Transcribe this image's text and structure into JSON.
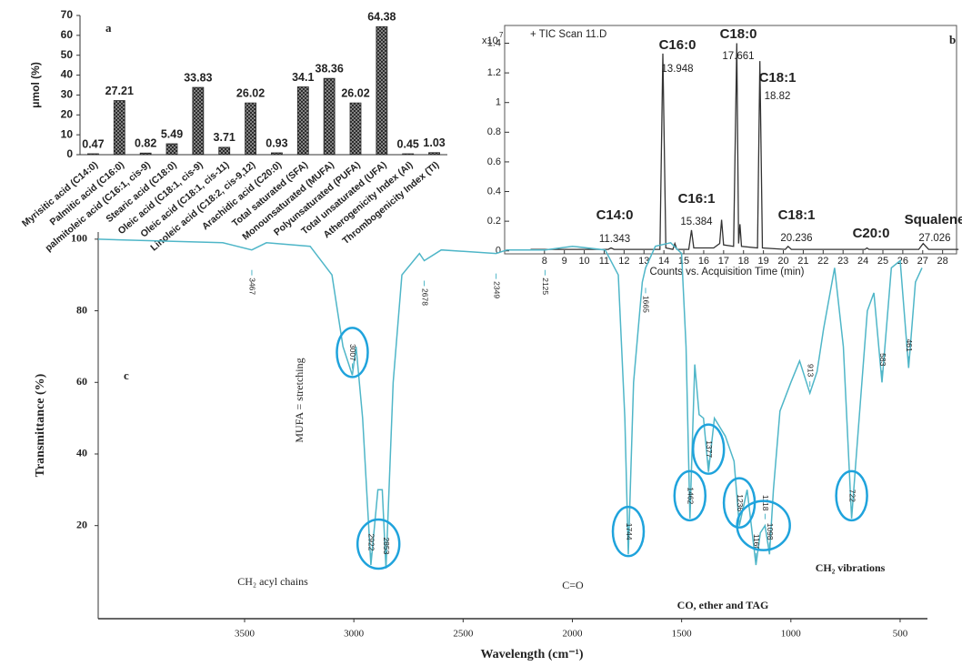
{
  "chart_data": [
    {
      "type": "bar",
      "panel": "a",
      "ylabel": "μmol (%)",
      "categories": [
        "Myrisitic acid (C14:0)",
        "Palmitic acid (C16:0)",
        "palmitoleic acid (C16:1, cis-9)",
        "Stearic acid (C18:0)",
        "Oleic acid (C18:1, cis-9)",
        "Oleic acid (C18:1, cis-11)",
        "Linoleic acid (C18:2, cis-9,12)",
        "Arachidic acid (C20:0)",
        "Total saturated (SFA)",
        "Monounsaturated (MUFA)",
        "Polyunsaturated (PUFA)",
        "Total unsaturated (UFA)",
        "Atherogenicity Index (AI)",
        "Thrombogenicity Index (TI)"
      ],
      "values": [
        0.47,
        27.21,
        0.82,
        5.49,
        33.83,
        3.71,
        26.02,
        0.93,
        34.1,
        38.36,
        26.02,
        64.38,
        0.45,
        1.03
      ],
      "color": "#2a2a2a",
      "ylim": [
        0,
        70
      ],
      "yticks": [
        0,
        10,
        20,
        30,
        40,
        50,
        60,
        70
      ]
    },
    {
      "type": "line",
      "panel": "b",
      "title": "+ TIC Scan 11.D",
      "y_scale_label": "x10",
      "y_scale_exponent": 7,
      "xlabel": "Counts vs. Acquisition Time (min)",
      "x": [
        7.3,
        9,
        11.2,
        11.343,
        11.5,
        13.8,
        13.948,
        14.1,
        14.45,
        14.55,
        14.65,
        15.25,
        15.384,
        15.5,
        16.5,
        16.8,
        16.9,
        17.0,
        17.5,
        17.661,
        17.75,
        17.82,
        17.9,
        18.7,
        18.82,
        18.95,
        20.1,
        20.236,
        20.4,
        24.1,
        24.2,
        24.3,
        26.8,
        27.026,
        27.3,
        28.8
      ],
      "values": [
        0.01,
        0.01,
        0.01,
        0.02,
        0.01,
        0.01,
        1.33,
        0.02,
        0.01,
        0.05,
        0.01,
        0.01,
        0.14,
        0.02,
        0.02,
        0.05,
        0.21,
        0.04,
        0.03,
        1.4,
        0.05,
        0.18,
        0.03,
        0.02,
        1.28,
        0.02,
        0.01,
        0.03,
        0.01,
        0.01,
        0.02,
        0.01,
        0.01,
        0.05,
        0.01,
        0.01
      ],
      "color": "#333333",
      "xlim": [
        6,
        28.7
      ],
      "xticks": [
        8,
        9,
        10,
        11,
        12,
        13,
        14,
        15,
        16,
        17,
        18,
        19,
        20,
        21,
        22,
        23,
        24,
        25,
        26,
        27,
        28
      ],
      "ylim": [
        -0.02,
        1.5
      ],
      "yticks": [
        0,
        0.2,
        0.4,
        0.6,
        0.8,
        1,
        1.2,
        1.4
      ],
      "peaks": [
        {
          "name": "C14:0",
          "x": 11.343
        },
        {
          "name": "C16:0",
          "x": 13.948
        },
        {
          "name": "C16:1",
          "x": 15.384
        },
        {
          "name": "C18:0",
          "x": 17.661
        },
        {
          "name": "C18:1",
          "x": 18.82
        },
        {
          "name": "C18:1",
          "x": 20.236
        },
        {
          "name": "C20:0"
        },
        {
          "name": "Squalene",
          "x": 27.026
        }
      ]
    },
    {
      "type": "line",
      "panel": "c",
      "xlabel": "Wavelength (cm⁻¹)",
      "ylabel": "Transmittance  (%)",
      "x": [
        4170,
        3600,
        3467,
        3400,
        3200,
        3100,
        3050,
        3007,
        2990,
        2960,
        2922,
        2890,
        2870,
        2853,
        2820,
        2780,
        2700,
        2678,
        2600,
        2349,
        2300,
        2125,
        2000,
        1850,
        1790,
        1760,
        1744,
        1720,
        1680,
        1665,
        1620,
        1550,
        1500,
        1480,
        1462,
        1440,
        1420,
        1400,
        1377,
        1350,
        1300,
        1260,
        1236,
        1200,
        1160,
        1140,
        1118,
        1098,
        1080,
        1050,
        1000,
        960,
        913,
        880,
        850,
        800,
        760,
        722,
        700,
        650,
        620,
        583,
        540,
        500,
        461,
        430,
        400
      ],
      "values": [
        100,
        99,
        97,
        99,
        98,
        90,
        70,
        62,
        70,
        50,
        9,
        30,
        30,
        8,
        60,
        90,
        96,
        94,
        97,
        96,
        97,
        97,
        98,
        97,
        90,
        50,
        12,
        60,
        88,
        92,
        98,
        99,
        96,
        70,
        22,
        65,
        51,
        50,
        35,
        50,
        45,
        38,
        20,
        30,
        9,
        18,
        20,
        12,
        30,
        52,
        60,
        66,
        57,
        63,
        75,
        92,
        70,
        22,
        40,
        80,
        85,
        60,
        92,
        94,
        64,
        88,
        92
      ],
      "color": "#4fb6c8",
      "xlim": [
        4170,
        375
      ],
      "xticks": [
        3500,
        3000,
        2500,
        2000,
        1500,
        1000,
        500
      ],
      "ylim": [
        -6,
        102
      ],
      "yticks": [
        20,
        40,
        60,
        80,
        100
      ],
      "peak_labels": [
        3467,
        3007,
        2922,
        2853,
        2678,
        2349,
        2125,
        1744,
        1665,
        1462,
        1377,
        1236,
        1160,
        1098,
        1118,
        913,
        722,
        583,
        461
      ],
      "annotations": [
        "MUFA = stretching",
        "CH₂ acyl chains",
        "C=O",
        "CO, ether and TAG",
        "CH₂ vibrations"
      ]
    }
  ]
}
